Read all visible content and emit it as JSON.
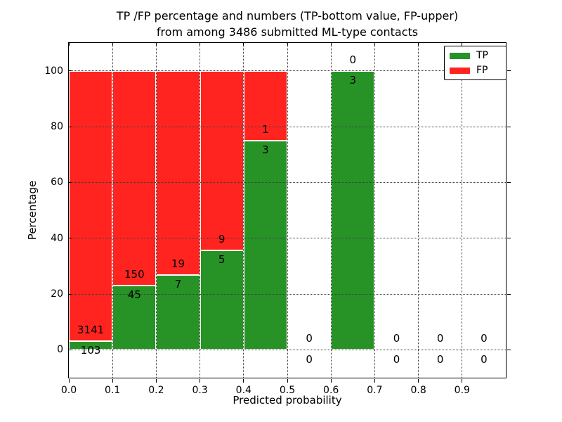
{
  "title": {
    "line1": "TP /FP percentage and numbers (TP-bottom value, FP-upper)",
    "line2": "from among 3486 submitted ML-type contacts"
  },
  "chart_data": {
    "type": "bar",
    "stacked": true,
    "title": "TP /FP percentage and numbers (TP-bottom value, FP-upper) from among 3486 submitted ML-type contacts",
    "xlabel": "Predicted probability",
    "ylabel": "Percentage",
    "xlim": [
      0.0,
      1.0
    ],
    "ylim": [
      -10,
      110
    ],
    "x_ticks": [
      "0.0",
      "0.1",
      "0.2",
      "0.3",
      "0.4",
      "0.5",
      "0.6",
      "0.7",
      "0.8",
      "0.9"
    ],
    "x_tick_values": [
      0.0,
      0.1,
      0.2,
      0.3,
      0.4,
      0.5,
      0.6,
      0.7,
      0.8,
      0.9
    ],
    "y_ticks": [
      0,
      20,
      40,
      60,
      80,
      100
    ],
    "grid": true,
    "total_contacts": 3486,
    "colors": {
      "tp": "#279327",
      "fp": "#FF2420",
      "bar_edge": "#ffffff",
      "grid": "#3c3c3c"
    },
    "legend": {
      "position": "upper right",
      "entries": [
        {
          "label": "TP",
          "color": "#279327"
        },
        {
          "label": "FP",
          "color": "#FF2420"
        }
      ]
    },
    "bins": [
      {
        "range": [
          0.0,
          0.1
        ],
        "tp_count": 103,
        "fp_count": 3141,
        "tp_pct": 3.18,
        "fp_pct": 96.82
      },
      {
        "range": [
          0.1,
          0.2
        ],
        "tp_count": 45,
        "fp_count": 150,
        "tp_pct": 23.08,
        "fp_pct": 76.92
      },
      {
        "range": [
          0.2,
          0.3
        ],
        "tp_count": 7,
        "fp_count": 19,
        "tp_pct": 26.92,
        "fp_pct": 73.08
      },
      {
        "range": [
          0.3,
          0.4
        ],
        "tp_count": 5,
        "fp_count": 9,
        "tp_pct": 35.71,
        "fp_pct": 64.29
      },
      {
        "range": [
          0.4,
          0.5
        ],
        "tp_count": 3,
        "fp_count": 1,
        "tp_pct": 75.0,
        "fp_pct": 25.0
      },
      {
        "range": [
          0.5,
          0.6
        ],
        "tp_count": 0,
        "fp_count": 0,
        "tp_pct": 0.0,
        "fp_pct": 0.0
      },
      {
        "range": [
          0.6,
          0.7
        ],
        "tp_count": 3,
        "fp_count": 0,
        "tp_pct": 100.0,
        "fp_pct": 0.0
      },
      {
        "range": [
          0.7,
          0.8
        ],
        "tp_count": 0,
        "fp_count": 0,
        "tp_pct": 0.0,
        "fp_pct": 0.0
      },
      {
        "range": [
          0.8,
          0.9
        ],
        "tp_count": 0,
        "fp_count": 0,
        "tp_pct": 0.0,
        "fp_pct": 0.0
      },
      {
        "range": [
          0.9,
          1.0
        ],
        "tp_count": 0,
        "fp_count": 0,
        "tp_pct": 0.0,
        "fp_pct": 0.0
      }
    ]
  }
}
